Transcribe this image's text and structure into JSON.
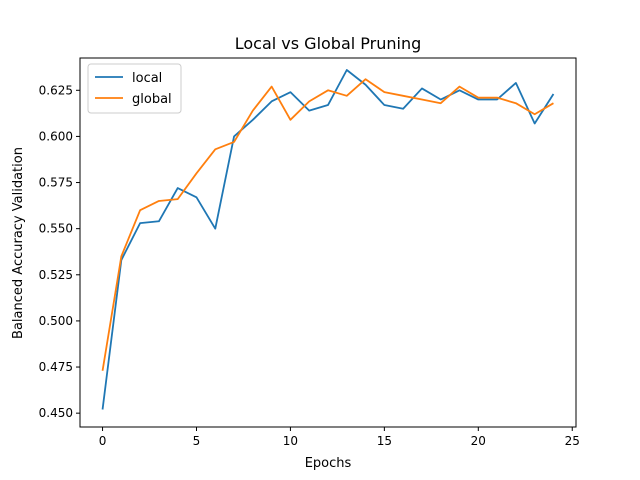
{
  "chart_data": {
    "type": "line",
    "title": "Local vs Global Pruning",
    "xlabel": "Epochs",
    "ylabel": "Balanced Accuracy Validation",
    "xlim": [
      -1.2,
      25.2
    ],
    "ylim": [
      0.4425,
      0.6425
    ],
    "xticks": [
      0,
      5,
      10,
      15,
      20,
      25
    ],
    "yticks": [
      0.45,
      0.475,
      0.5,
      0.525,
      0.55,
      0.575,
      0.6,
      0.625
    ],
    "ytick_labels": [
      "0.450",
      "0.475",
      "0.500",
      "0.525",
      "0.550",
      "0.575",
      "0.600",
      "0.625"
    ],
    "grid": false,
    "legend": "top-left",
    "x": [
      0,
      1,
      2,
      3,
      4,
      5,
      6,
      7,
      8,
      9,
      10,
      11,
      12,
      13,
      14,
      15,
      16,
      17,
      18,
      19,
      20,
      21,
      22,
      23,
      24
    ],
    "series": [
      {
        "name": "local",
        "color": "#1f77b4",
        "values": [
          0.452,
          0.533,
          0.553,
          0.554,
          0.572,
          0.567,
          0.55,
          0.6,
          0.609,
          0.619,
          0.624,
          0.614,
          0.617,
          0.636,
          0.628,
          0.617,
          0.615,
          0.626,
          0.62,
          0.625,
          0.62,
          0.62,
          0.629,
          0.607,
          0.623
        ]
      },
      {
        "name": "global",
        "color": "#ff7f0e",
        "values": [
          0.473,
          0.535,
          0.56,
          0.565,
          0.566,
          0.58,
          0.593,
          0.597,
          0.614,
          0.627,
          0.609,
          0.619,
          0.625,
          0.622,
          0.631,
          0.624,
          0.622,
          0.62,
          0.618,
          0.627,
          0.621,
          0.621,
          0.618,
          0.612,
          0.618
        ]
      }
    ]
  }
}
